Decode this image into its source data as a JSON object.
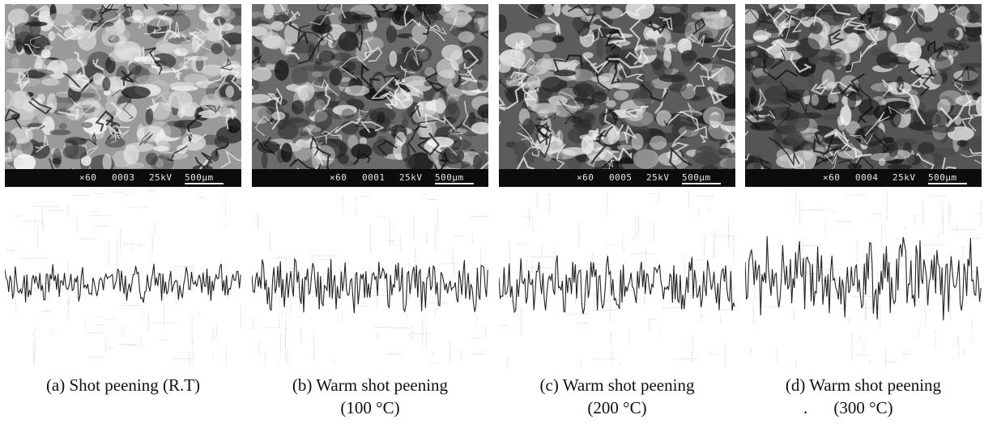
{
  "panels": [
    {
      "id": "a",
      "sem": {
        "magnification": "×60",
        "photo_no": "0003",
        "voltage": "25kV",
        "scale": "500μm"
      },
      "caption_line1": "(a) Shot peening (R.T)",
      "caption_line2": "",
      "tone": "#9a9a9a"
    },
    {
      "id": "b",
      "sem": {
        "magnification": "×60",
        "photo_no": "0001",
        "voltage": "25kV",
        "scale": "500μm"
      },
      "caption_line1": "(b) Warm shot peening",
      "caption_line2": "(100 °C)",
      "tone": "#6a6a6a"
    },
    {
      "id": "c",
      "sem": {
        "magnification": "×60",
        "photo_no": "0005",
        "voltage": "25kV",
        "scale": "500μm"
      },
      "caption_line1": "(c) Warm shot peening",
      "caption_line2": "(200 °C)",
      "tone": "#5c5c5c"
    },
    {
      "id": "d",
      "sem": {
        "magnification": "×60",
        "photo_no": "0004",
        "voltage": "25kV",
        "scale": "500μm"
      },
      "caption_line1": "(d) Warm shot peening",
      "caption_line2": "(300 °C)",
      "caption_leading_mark": ".",
      "tone": "#555555"
    }
  ]
}
